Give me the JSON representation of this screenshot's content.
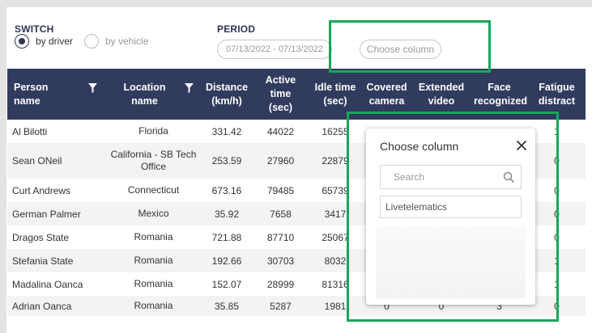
{
  "switch": {
    "label": "SWITCH",
    "by_driver": "by driver",
    "by_vehicle": "by vehicle",
    "selected": "by driver"
  },
  "period": {
    "label": "PERIOD",
    "value": "07/13/2022 - 07/13/2022"
  },
  "choose_column_button": "Choose column",
  "table": {
    "headers": [
      [
        "Person",
        "name"
      ],
      [
        "Location",
        "name"
      ],
      [
        "Distance",
        "(km/h)"
      ],
      [
        "Active",
        "time",
        "(sec)"
      ],
      [
        "Idle time",
        "(sec)"
      ],
      [
        "Covered",
        "camera"
      ],
      [
        "Extended",
        "video"
      ],
      [
        "Face",
        "recognized"
      ],
      [
        "Fatigue",
        "distract"
      ]
    ],
    "rows": [
      [
        "Al Bilotti",
        "Florida",
        "331.42",
        "44022",
        "16255",
        "",
        "",
        "",
        "1"
      ],
      [
        "Sean ONeil",
        "California - SB Tech Office",
        "253.59",
        "27960",
        "22879",
        "",
        "",
        "",
        "0"
      ],
      [
        "Curt Andrews",
        "Connecticut",
        "673.16",
        "79485",
        "65739",
        "",
        "",
        "",
        "0"
      ],
      [
        "German Palmer",
        "Mexico",
        "35.92",
        "7658",
        "3417",
        "",
        "",
        "",
        "0"
      ],
      [
        "Dragos State",
        "Romania",
        "721.88",
        "87710",
        "25067",
        "",
        "",
        "",
        "0"
      ],
      [
        "Stefania State",
        "Romania",
        "192.66",
        "30703",
        "8032",
        "",
        "",
        "",
        "1"
      ],
      [
        "Madalina Oanca",
        "Romania",
        "152.07",
        "28999",
        "81316",
        "",
        "",
        "",
        "1"
      ],
      [
        "Adrian Oanca",
        "Romania",
        "35.85",
        "5287",
        "1981",
        "0",
        "0",
        "3",
        "0"
      ]
    ]
  },
  "modal": {
    "title": "Choose column",
    "search_placeholder": "Search",
    "items": [
      "Livetelematics"
    ]
  },
  "colors": {
    "header_bg": "#303b5e",
    "highlight": "#19a65a"
  }
}
